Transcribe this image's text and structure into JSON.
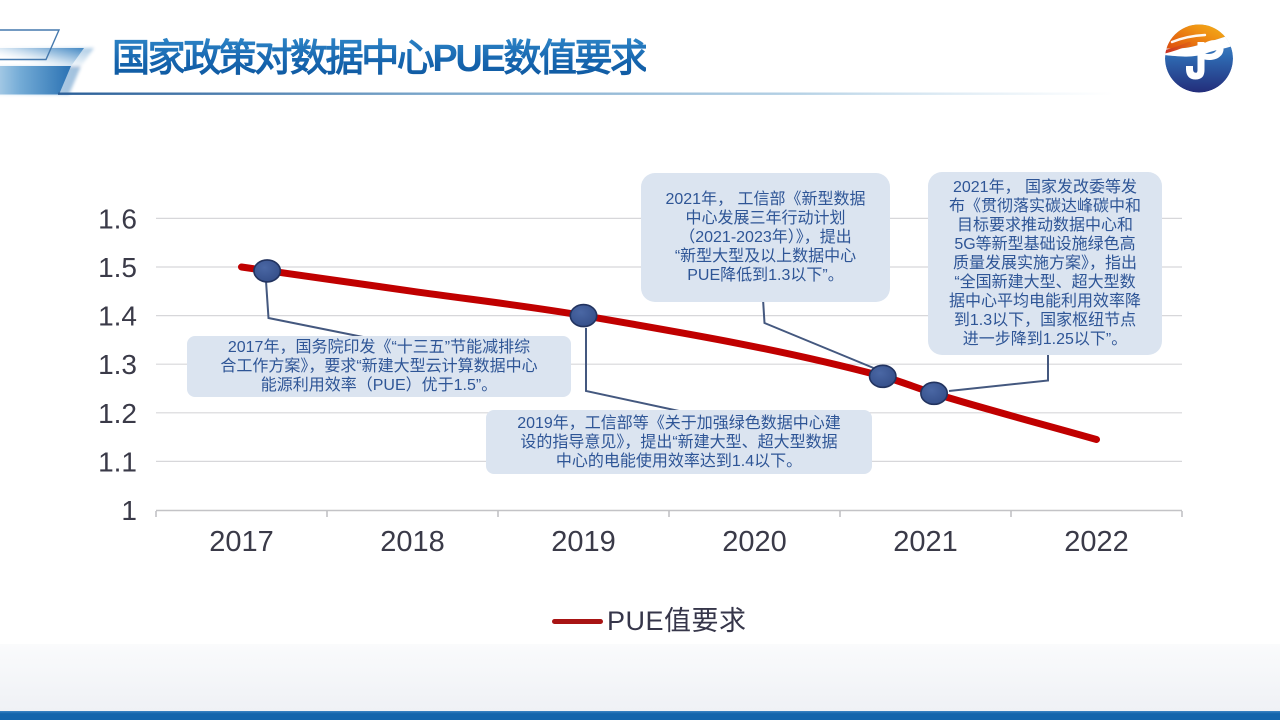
{
  "slide": {
    "title": "国家政策对数据中心PUE数值要求"
  },
  "logo": {
    "name": "company-logo-jp",
    "monogram": "JP",
    "colors": {
      "top": "#ef9013",
      "bottom": "#232d7a",
      "swoosh": "#ffffff",
      "stripe": "#cf3222"
    }
  },
  "chart_data": {
    "type": "line",
    "title": "",
    "xlabel": "",
    "ylabel": "",
    "x_ticks": [
      {
        "v": 2017,
        "label": "2017"
      },
      {
        "v": 2018,
        "label": "2018"
      },
      {
        "v": 2019,
        "label": "2019"
      },
      {
        "v": 2020,
        "label": "2020"
      },
      {
        "v": 2021,
        "label": "2021"
      },
      {
        "v": 2022,
        "label": "2022"
      }
    ],
    "y_ticks": [
      {
        "v": 1,
        "label": "1"
      },
      {
        "v": 1.1,
        "label": "1.1"
      },
      {
        "v": 1.2,
        "label": "1.2"
      },
      {
        "v": 1.3,
        "label": "1.3"
      },
      {
        "v": 1.4,
        "label": "1.4"
      },
      {
        "v": 1.5,
        "label": "1.5"
      },
      {
        "v": 1.6,
        "label": "1.6"
      }
    ],
    "xlim": [
      2016.5,
      2022.5
    ],
    "ylim": [
      1.0,
      1.65
    ],
    "grid": true,
    "legend_position": "bottom-center",
    "series": [
      {
        "name": "PUE值要求",
        "color": "#c00000",
        "points": [
          {
            "x": 2017,
            "y": 1.5
          },
          {
            "x": 2018,
            "y": 1.45
          },
          {
            "x": 2019,
            "y": 1.4
          },
          {
            "x": 2020.75,
            "y": 1.275
          },
          {
            "x": 2021.05,
            "y": 1.24
          },
          {
            "x": 2022,
            "y": 1.145
          }
        ],
        "markers": [
          {
            "x": 2017.15,
            "y": 1.492
          },
          {
            "x": 2019,
            "y": 1.4
          },
          {
            "x": 2020.75,
            "y": 1.275
          },
          {
            "x": 2021.05,
            "y": 1.24
          }
        ],
        "marker_color": "#35508c"
      }
    ]
  },
  "legend": {
    "label": "PUE值要求",
    "swatch_color": "#a81414"
  },
  "annotations": [
    {
      "id": "2017",
      "lines": [
        "2017年，国务院印发《“十三五”节能减排综",
        "合工作方案》，要求“新建大型云计算数据中心",
        "能源利用效率（PUE）优于1.5”。"
      ]
    },
    {
      "id": "2019",
      "lines": [
        "2019年，工信部等《关于加强绿色数据中心建",
        "设的指导意见》，提出“新建大型、超大型数据",
        "中心的电能使用效率达到1.4以下。"
      ]
    },
    {
      "id": "2021a",
      "lines": [
        "2021年， 工信部《新型数据",
        "中心发展三年行动计划",
        "（2021-2023年）》，提出",
        "“新型大型及以上数据中心",
        "PUE降低到1.3以下”。"
      ]
    },
    {
      "id": "2021b",
      "lines": [
        "2021年， 国家发改委等发",
        "布《贯彻落实碳达峰碳中和",
        "目标要求推动数据中心和",
        "5G等新型基础设施绿色高",
        "质量发展实施方案》，指出",
        "“全国新建大型、超大型数",
        "据中心平均电能利用效率降",
        "到1.3以下，国家枢纽节点",
        "进一步降到1.25以下”。"
      ]
    }
  ]
}
